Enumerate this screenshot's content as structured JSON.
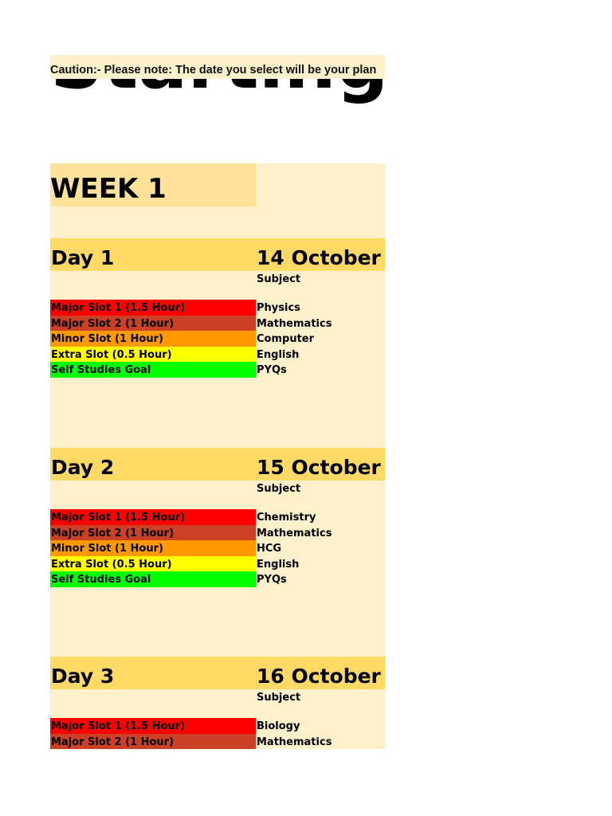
{
  "caution": "Caution:- Please note: The date you select will be your plan",
  "title": "Starting Date",
  "week": "WEEK 1",
  "subject_label": "Subject",
  "slot_colors": [
    "#FF0000",
    "#CC4125",
    "#FF9900",
    "#FFFF00",
    "#00FF00"
  ],
  "days": [
    {
      "name": "Day 1",
      "date": "14 October",
      "slots": [
        {
          "label": "Major Slot 1 (1.5 Hour)",
          "subject": "Physics"
        },
        {
          "label": "Major Slot 2 (1 Hour)",
          "subject": "Mathematics"
        },
        {
          "label": "Minor Slot (1 Hour)",
          "subject": "Computer"
        },
        {
          "label": "Extra Slot (0.5 Hour)",
          "subject": "English"
        },
        {
          "label": "Self Studies Goal",
          "subject": "PYQs"
        }
      ]
    },
    {
      "name": "Day 2",
      "date": "15 October",
      "slots": [
        {
          "label": "Major Slot 1 (1.5 Hour)",
          "subject": "Chemistry"
        },
        {
          "label": "Major Slot 2 (1 Hour)",
          "subject": "Mathematics"
        },
        {
          "label": "Minor Slot (1 Hour)",
          "subject": "HCG"
        },
        {
          "label": "Extra Slot (0.5 Hour)",
          "subject": "English"
        },
        {
          "label": "Self Studies Goal",
          "subject": "PYQs"
        }
      ]
    },
    {
      "name": "Day 3",
      "date": "16 October",
      "slots": [
        {
          "label": "Major Slot 1 (1.5 Hour)",
          "subject": "Biology"
        },
        {
          "label": "Major Slot 2 (1 Hour)",
          "subject": "Mathematics"
        }
      ]
    }
  ]
}
